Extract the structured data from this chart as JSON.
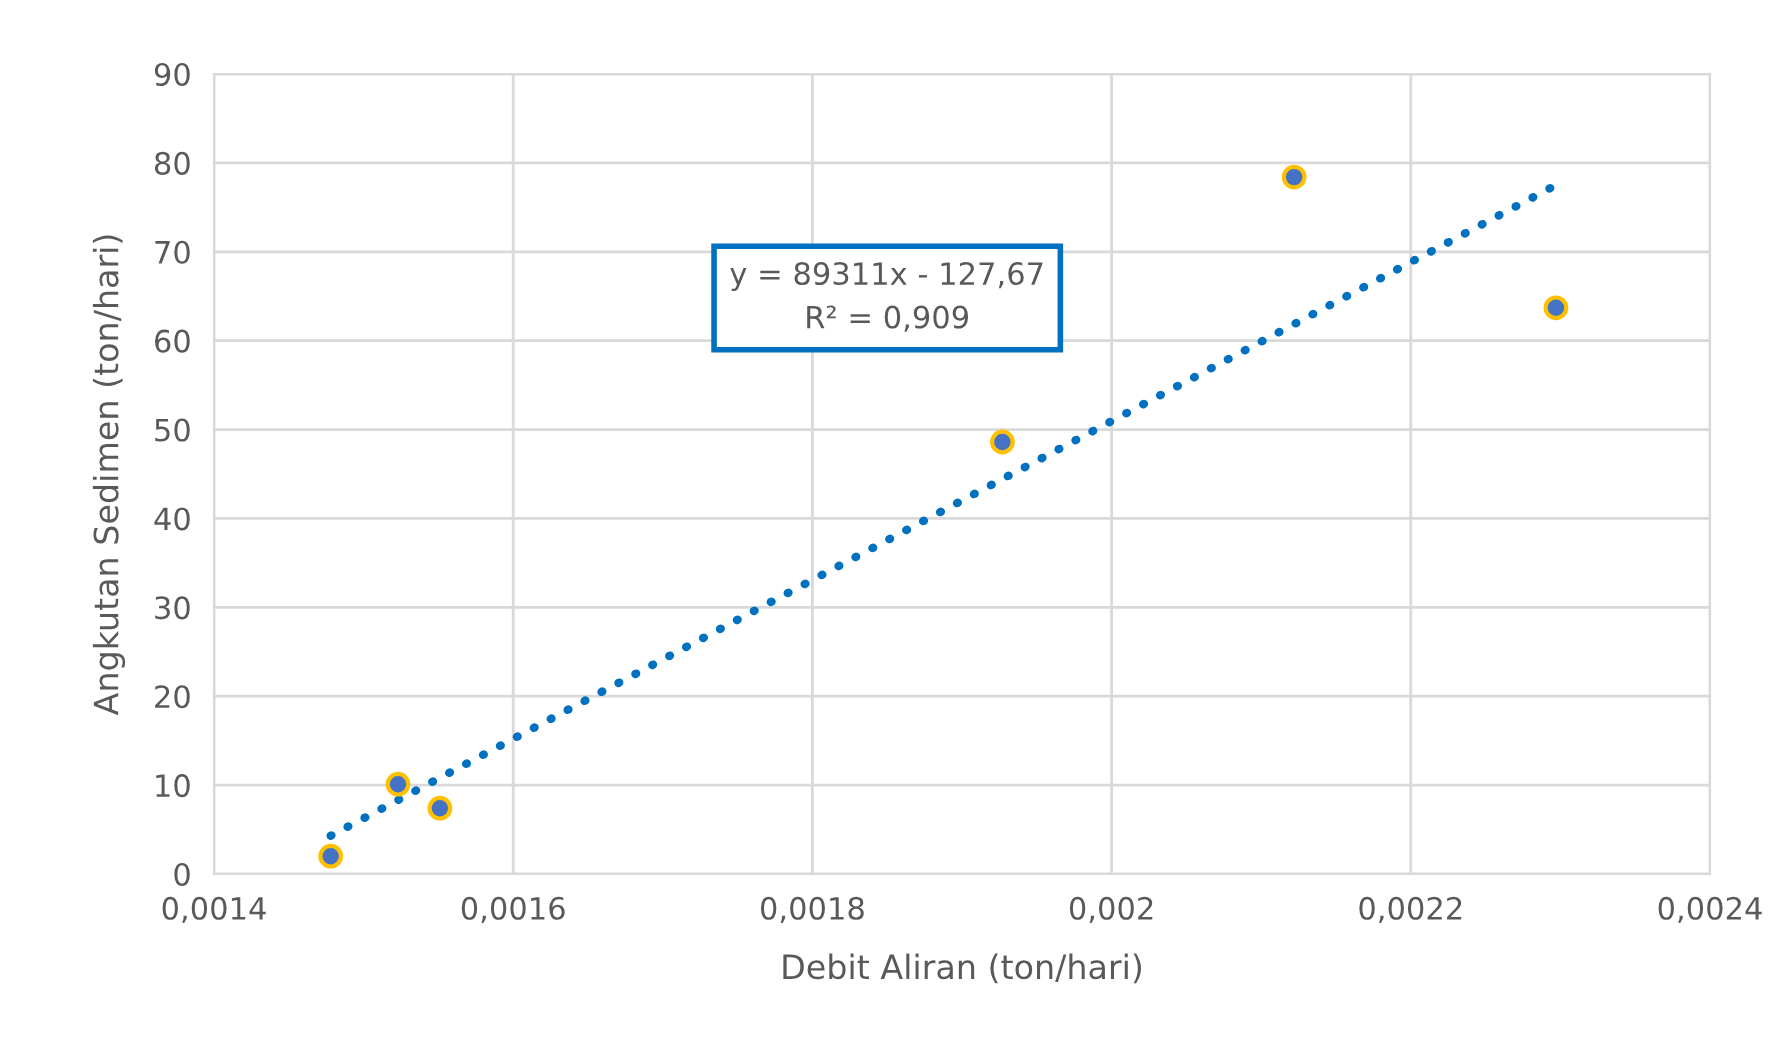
{
  "chart_data": {
    "type": "scatter",
    "xlabel": "Debit Aliran (ton/hari)",
    "ylabel": "Angkutan Sedimen (ton/hari)",
    "series": [
      {
        "color": "#4472c4",
        "x": [
          0.001478,
          0.001523,
          0.001551,
          0.001927,
          0.002122,
          0.002297
        ],
        "values": [
          2.0,
          10.1,
          7.4,
          48.6,
          78.4,
          63.7
        ]
      },
      {
        "type": "line",
        "color": "#0070c0",
        "line_style": "dotted",
        "marker": "none",
        "x": [
          0.001478,
          0.002297
        ],
        "values": [
          4.3,
          77.5
        ]
      }
    ],
    "xlim": [
      0.0014,
      0.0024
    ],
    "xticks": [
      {
        "value": 0.0014,
        "label": "0,0014"
      },
      {
        "value": 0.0016,
        "label": "0,0016"
      },
      {
        "value": 0.0018,
        "label": "0,0018"
      },
      {
        "value": 0.002,
        "label": "0,002"
      },
      {
        "value": 0.0022,
        "label": "0,0022"
      },
      {
        "value": 0.0024,
        "label": "0,0024"
      }
    ],
    "ylim": [
      0,
      90
    ],
    "yticks": [
      0,
      10,
      20,
      30,
      40,
      50,
      60,
      70,
      80,
      90
    ],
    "grid": true,
    "marker": "circle",
    "annotations": [
      "y = 89311x - 127,67\nR² = 0,909"
    ]
  }
}
